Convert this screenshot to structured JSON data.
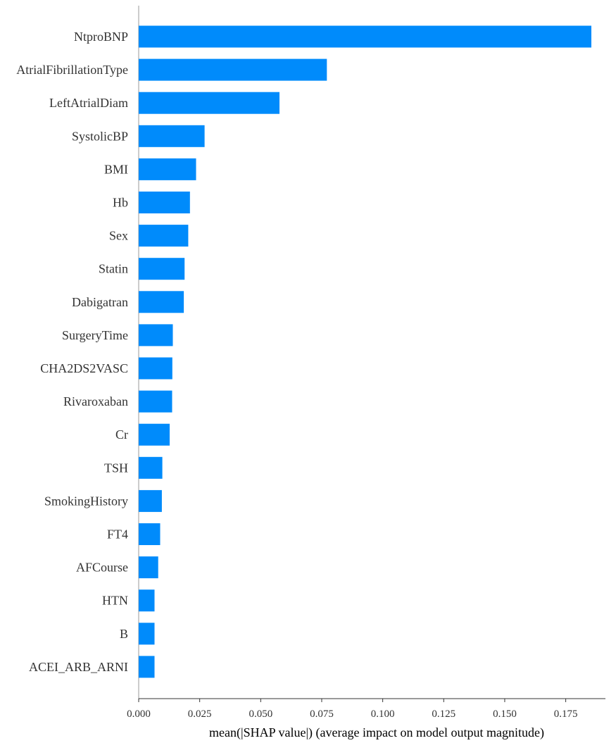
{
  "chart_data": {
    "type": "bar",
    "orientation": "horizontal",
    "title": "",
    "xlabel": "mean(|SHAP value|) (average impact on model output magnitude)",
    "ylabel": "",
    "xlim": [
      0.0,
      0.187
    ],
    "grid": false,
    "legend": "none",
    "bar_color": "#008bfb",
    "xticks": [
      0.0,
      0.025,
      0.05,
      0.075,
      0.1,
      0.125,
      0.15,
      0.175
    ],
    "xtick_labels": [
      "0.000",
      "0.025",
      "0.050",
      "0.075",
      "0.100",
      "0.125",
      "0.150",
      "0.175"
    ],
    "categories": [
      "NtproBNP",
      "AtrialFibrillationType",
      "LeftAtrialDiam",
      "SystolicBP",
      "BMI",
      "Hb",
      "Sex",
      "Statin",
      "Dabigatran",
      "SurgeryTime",
      "CHA2DS2VASC",
      "Rivaroxaban",
      "Cr",
      "TSH",
      "SmokingHistory",
      "FT4",
      "AFCourse",
      "HTN",
      "B",
      "ACEI_ARB_ARNI"
    ],
    "values": [
      0.1855,
      0.0771,
      0.0577,
      0.027,
      0.0235,
      0.021,
      0.0203,
      0.0188,
      0.0185,
      0.014,
      0.0138,
      0.0137,
      0.0127,
      0.0097,
      0.0095,
      0.0088,
      0.008,
      0.0065,
      0.0065,
      0.0065
    ]
  }
}
